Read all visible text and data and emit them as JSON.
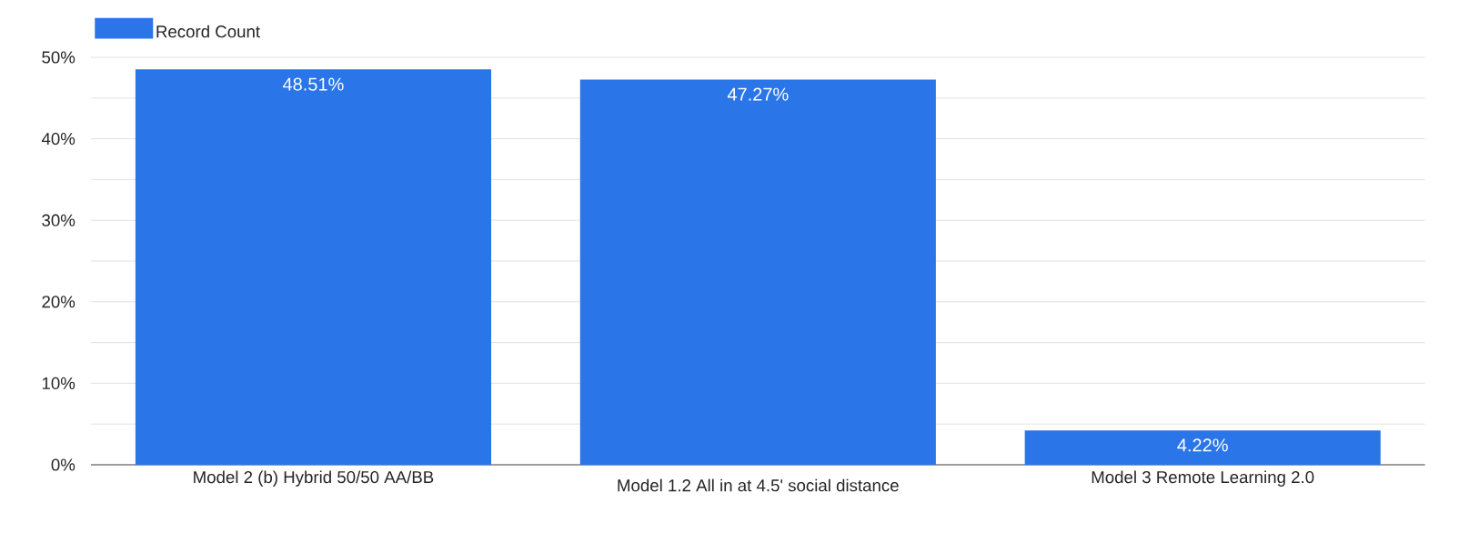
{
  "chart_data": {
    "type": "bar",
    "categories": [
      "Model 2 (b) Hybrid 50/50 AA/BB",
      "Model 1.2 All in at 4.5' social distance",
      "Model 3 Remote Learning 2.0"
    ],
    "series": [
      {
        "name": "Record Count",
        "color": "#2a75e8",
        "values": [
          48.51,
          47.27,
          4.22
        ],
        "value_labels": [
          "48.51%",
          "47.27%",
          "4.22%"
        ]
      }
    ],
    "ylim": [
      0,
      50
    ],
    "yticks": [
      {
        "value": 0,
        "label": "0%"
      },
      {
        "value": 5,
        "label": null
      },
      {
        "value": 10,
        "label": "10%"
      },
      {
        "value": 15,
        "label": null
      },
      {
        "value": 20,
        "label": "20%"
      },
      {
        "value": 25,
        "label": null
      },
      {
        "value": 30,
        "label": "30%"
      },
      {
        "value": 35,
        "label": null
      },
      {
        "value": 40,
        "label": "40%"
      },
      {
        "value": 45,
        "label": null
      },
      {
        "value": 50,
        "label": "50%"
      }
    ],
    "grid": "y",
    "legend": "top left"
  }
}
